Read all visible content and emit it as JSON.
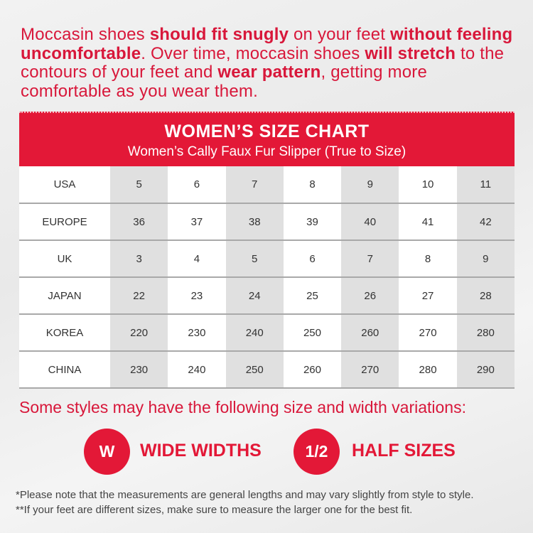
{
  "intro": [
    [
      {
        "t": "Moccasin shoes ",
        "b": false
      },
      {
        "t": "should fit snugly",
        "b": true
      },
      {
        "t": " on your feet ",
        "b": false
      },
      {
        "t": "without feeling",
        "b": true
      }
    ],
    [
      {
        "t": "uncomfortable",
        "b": true
      },
      {
        "t": ". Over time, moccasin shoes ",
        "b": false
      },
      {
        "t": "will stretch",
        "b": true
      },
      {
        "t": " to the",
        "b": false
      }
    ],
    [
      {
        "t": "contours of your feet and ",
        "b": false
      },
      {
        "t": "wear pattern",
        "b": true
      },
      {
        "t": ", getting more",
        "b": false
      }
    ],
    [
      {
        "t": "comfortable as you wear them.",
        "b": false
      }
    ]
  ],
  "chart": {
    "title": "WOMEN’S SIZE CHART",
    "subtitle": "Women’s Cally Faux Fur Slipper (True to Size)",
    "rows": [
      {
        "label": "USA",
        "values": [
          "5",
          "6",
          "7",
          "8",
          "9",
          "10",
          "11"
        ]
      },
      {
        "label": "EUROPE",
        "values": [
          "36",
          "37",
          "38",
          "39",
          "40",
          "41",
          "42"
        ]
      },
      {
        "label": "UK",
        "values": [
          "3",
          "4",
          "5",
          "6",
          "7",
          "8",
          "9"
        ]
      },
      {
        "label": "JAPAN",
        "values": [
          "22",
          "23",
          "24",
          "25",
          "26",
          "27",
          "28"
        ]
      },
      {
        "label": "KOREA",
        "values": [
          "220",
          "230",
          "240",
          "250",
          "260",
          "270",
          "280"
        ]
      },
      {
        "label": "CHINA",
        "values": [
          "230",
          "240",
          "250",
          "260",
          "270",
          "280",
          "290"
        ]
      }
    ]
  },
  "variations": {
    "heading": "Some styles may have the following size and width variations:",
    "wide": {
      "badge": "W",
      "label": "WIDE WIDTHS"
    },
    "half": {
      "badge": "1/2",
      "label": "HALF SIZES"
    }
  },
  "notes": [
    "*Please note that the measurements are general lengths and may vary slightly from style to style.",
    "**If your feet are different sizes, make sure to measure the larger one for the best fit."
  ],
  "colors": {
    "brand_red": "#e31837",
    "shade": "#e0e0e0"
  }
}
